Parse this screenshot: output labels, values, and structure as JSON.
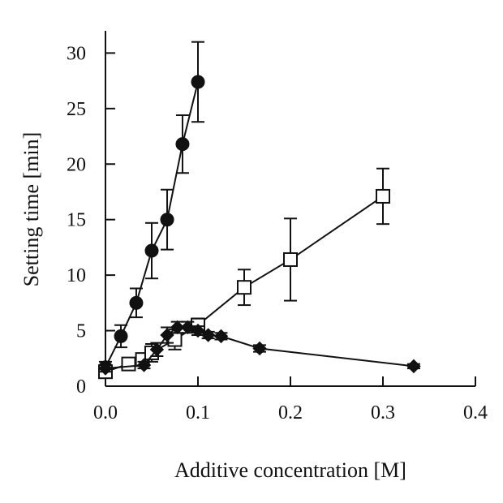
{
  "chart_data": {
    "type": "scatter",
    "title": "",
    "xlabel": "Additive concentration [M]",
    "ylabel": "Setting time [min]",
    "xlim": [
      0,
      0.4
    ],
    "ylim": [
      0,
      32
    ],
    "xticks": [
      0.0,
      0.1,
      0.2,
      0.3,
      0.4
    ],
    "xtick_labels": [
      "0.0",
      "0.1",
      "0.2",
      "0.3",
      "0.4"
    ],
    "yticks": [
      0,
      5,
      10,
      15,
      20,
      25,
      30
    ],
    "ytick_labels": [
      "0",
      "5",
      "10",
      "15",
      "20",
      "25",
      "30"
    ],
    "grid": false,
    "legend": "none",
    "series": [
      {
        "marker": "filled-circle",
        "color": "#111111",
        "x": [
          0.0,
          0.0167,
          0.0333,
          0.05,
          0.0667,
          0.0833,
          0.1
        ],
        "y": [
          1.7,
          4.5,
          7.5,
          12.2,
          15.0,
          21.8,
          27.4
        ],
        "err": [
          0.5,
          1.0,
          1.3,
          2.5,
          2.7,
          2.6,
          3.6
        ]
      },
      {
        "marker": "open-square",
        "color": "#111111",
        "x": [
          0.0,
          0.025,
          0.04,
          0.05,
          0.075,
          0.1,
          0.15,
          0.2,
          0.3
        ],
        "y": [
          1.3,
          2.0,
          2.4,
          3.0,
          4.2,
          5.5,
          8.9,
          11.4,
          17.1
        ],
        "err": [
          0.5,
          0.4,
          0.5,
          0.8,
          0.9,
          0.6,
          1.6,
          3.7,
          2.5
        ]
      },
      {
        "marker": "filled-diamond",
        "color": "#111111",
        "x": [
          0.0,
          0.0417,
          0.0556,
          0.0667,
          0.0778,
          0.0889,
          0.1,
          0.1111,
          0.125,
          0.1667,
          0.3333
        ],
        "y": [
          1.6,
          1.9,
          3.3,
          4.6,
          5.3,
          5.3,
          5.0,
          4.6,
          4.5,
          3.4,
          1.8
        ],
        "err": [
          0.3,
          0.3,
          0.6,
          0.7,
          0.5,
          0.5,
          0.4,
          0.3,
          0.3,
          0.3,
          0.2
        ]
      }
    ]
  }
}
